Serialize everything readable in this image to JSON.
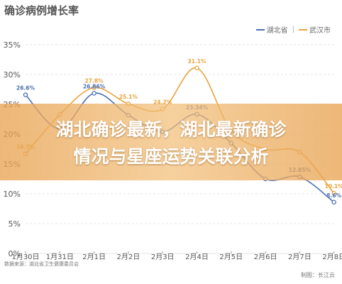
{
  "colors": {
    "hubei": "#4a6fb5",
    "wuhan": "#e8a33c",
    "banner": "#e8a352",
    "grid": "#e6e6e6",
    "axis_text": "#555555"
  },
  "footer": {
    "source": "数据来源：湖北省卫生健康委员会",
    "credit": "制图：长江云"
  },
  "banner": {
    "line1": "湖北确诊最新，湖北最新确诊",
    "line2": "情况与星座运势关联分析"
  },
  "chart_data": {
    "type": "line",
    "title": "确诊病例增长率",
    "xlabel": "",
    "ylabel": "",
    "categories": [
      "1月30日",
      "1月31日",
      "2月1日",
      "2月2日",
      "2月3日",
      "2月4日",
      "2月5日",
      "2月6日",
      "2月7日",
      "2月8日"
    ],
    "ylim": [
      0,
      35
    ],
    "yticks": [
      "0%",
      "5%",
      "10%",
      "15%",
      "20%",
      "25%",
      "30%",
      "35%"
    ],
    "grid": true,
    "legend_position": "top-right",
    "series": [
      {
        "name": "湖北省",
        "color": "#4a6fb5",
        "values": [
          26.6,
          20.9,
          26.86,
          23.2,
          20.4,
          23.34,
          18.5,
          12.5,
          12.85,
          8.6
        ],
        "labels": [
          "26.6%",
          "",
          "26.86%",
          "",
          "",
          "23.34%",
          "",
          "",
          "12.85%",
          "8.6%"
        ]
      },
      {
        "name": "武汉市",
        "color": "#e8a33c",
        "values": [
          16.7,
          23.3,
          27.8,
          25.1,
          24.2,
          31.1,
          20.6,
          17.5,
          17.0,
          10.1
        ],
        "labels": [
          "16.7%",
          "",
          "27.8%",
          "25.1%",
          "24.2%",
          "31.1%",
          "",
          "",
          "",
          "10.1%"
        ]
      }
    ]
  }
}
